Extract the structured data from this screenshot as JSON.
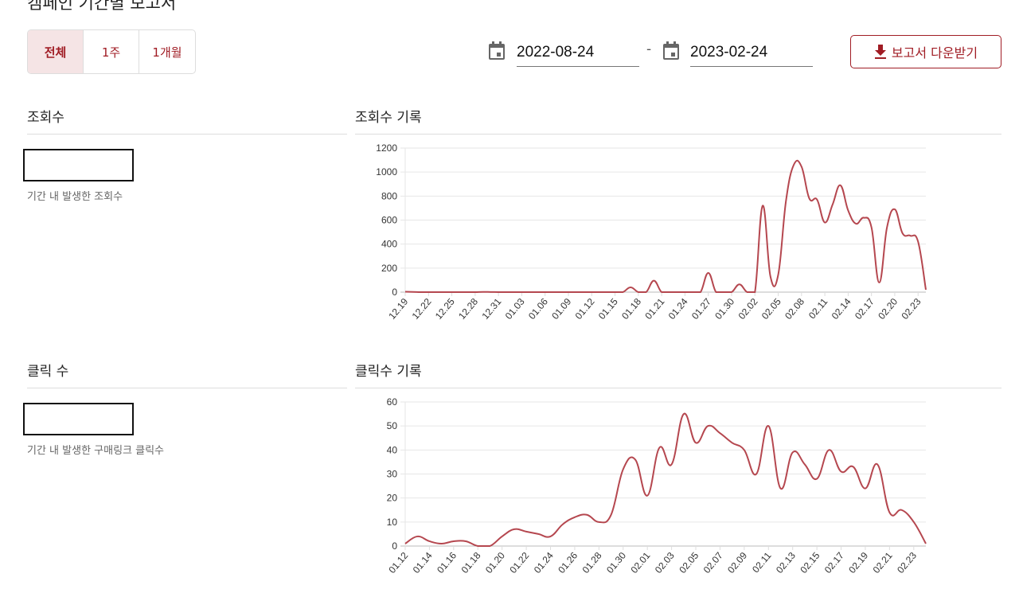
{
  "page_title": "캠페인 기간별 보고서",
  "period_tabs": [
    {
      "label": "전체",
      "active": true
    },
    {
      "label": "1주",
      "active": false
    },
    {
      "label": "1개월",
      "active": false
    }
  ],
  "date_range": {
    "start": "2022-08-24",
    "separator": "-",
    "end": "2023-02-24"
  },
  "download_button": {
    "label": "보고서 다운받기",
    "icon": "download-icon"
  },
  "views": {
    "title": "조회수",
    "value": "",
    "caption": "기간 내 발생한 조회수",
    "chart_title": "조회수 기록"
  },
  "clicks": {
    "title": "클릭 수",
    "value": "",
    "caption": "기간 내 발생한 구매링크 클릭수",
    "chart_title": "클릭수 기록"
  },
  "colors": {
    "accent": "#a01c24",
    "line": "#b5474f"
  },
  "chart_data": [
    {
      "type": "line",
      "title": "조회수 기록",
      "start": "12.19",
      "ylim": [
        0,
        1200
      ],
      "yticks": [
        0,
        200,
        400,
        600,
        800,
        1000,
        1200
      ],
      "grid": true,
      "xticklabels": [
        "12.19",
        "12.22",
        "12.25",
        "12.28",
        "12.31",
        "01.03",
        "01.06",
        "01.09",
        "01.12",
        "01.15",
        "01.18",
        "01.21",
        "01.24",
        "01.27",
        "01.30",
        "02.02",
        "02.05",
        "02.08",
        "02.11",
        "02.14",
        "02.17",
        "02.20",
        "02.23"
      ],
      "x": [
        "12.19",
        "12.20",
        "12.21",
        "12.22",
        "12.23",
        "12.24",
        "12.25",
        "12.26",
        "12.27",
        "12.28",
        "12.29",
        "12.30",
        "12.31",
        "01.01",
        "01.02",
        "01.03",
        "01.04",
        "01.05",
        "01.06",
        "01.07",
        "01.08",
        "01.09",
        "01.10",
        "01.11",
        "01.12",
        "01.13",
        "01.14",
        "01.15",
        "01.16",
        "01.17",
        "01.18",
        "01.19",
        "01.20",
        "01.21",
        "01.22",
        "01.23",
        "01.24",
        "01.25",
        "01.26",
        "01.27",
        "01.28",
        "01.29",
        "01.30",
        "01.31",
        "02.01",
        "02.02",
        "02.03",
        "02.04",
        "02.05",
        "02.06",
        "02.07",
        "02.08",
        "02.09",
        "02.10",
        "02.11",
        "02.12",
        "02.13",
        "02.14",
        "02.15",
        "02.16",
        "02.17",
        "02.18",
        "02.19",
        "02.20",
        "02.21",
        "02.22",
        "02.23",
        "02.24"
      ],
      "values": [
        3,
        2,
        0,
        0,
        0,
        0,
        0,
        0,
        0,
        0,
        2,
        1,
        0,
        0,
        0,
        0,
        0,
        0,
        0,
        0,
        0,
        0,
        0,
        0,
        0,
        0,
        0,
        0,
        0,
        40,
        0,
        0,
        95,
        0,
        0,
        0,
        0,
        0,
        0,
        160,
        0,
        0,
        0,
        65,
        0,
        0,
        720,
        130,
        145,
        760,
        1060,
        1045,
        780,
        770,
        580,
        730,
        890,
        680,
        570,
        620,
        540,
        80,
        540,
        690,
        490,
        470,
        420,
        20
      ]
    },
    {
      "type": "line",
      "title": "클릭수 기록",
      "ylim": [
        0,
        60
      ],
      "yticks": [
        0,
        10,
        20,
        30,
        40,
        50,
        60
      ],
      "grid": true,
      "xticklabels": [
        "01.12",
        "01.14",
        "01.16",
        "01.18",
        "01.20",
        "01.22",
        "01.24",
        "01.26",
        "01.28",
        "01.30",
        "02.01",
        "02.03",
        "02.05",
        "02.07",
        "02.09",
        "02.11",
        "02.13",
        "02.15",
        "02.17",
        "02.19",
        "02.21",
        "02.23"
      ],
      "x": [
        "01.12",
        "01.13",
        "01.14",
        "01.15",
        "01.16",
        "01.17",
        "01.18",
        "01.19",
        "01.20",
        "01.21",
        "01.22",
        "01.23",
        "01.24",
        "01.25",
        "01.26",
        "01.27",
        "01.28",
        "01.29",
        "01.30",
        "01.31",
        "02.01",
        "02.02",
        "02.03",
        "02.04",
        "02.05",
        "02.06",
        "02.07",
        "02.08",
        "02.09",
        "02.10",
        "02.11",
        "02.12",
        "02.13",
        "02.14",
        "02.15",
        "02.16",
        "02.17",
        "02.18",
        "02.19",
        "02.20",
        "02.21",
        "02.22",
        "02.23",
        "02.24"
      ],
      "values": [
        1,
        4,
        2,
        1,
        2,
        2,
        0,
        0,
        4,
        7,
        6,
        5,
        4,
        9,
        12,
        13,
        10,
        13,
        32,
        36,
        21,
        41,
        34,
        55,
        43,
        50,
        47,
        43,
        40,
        30,
        50,
        24,
        39,
        34,
        28,
        40,
        31,
        33,
        24,
        34,
        14,
        15,
        10,
        1
      ]
    }
  ]
}
